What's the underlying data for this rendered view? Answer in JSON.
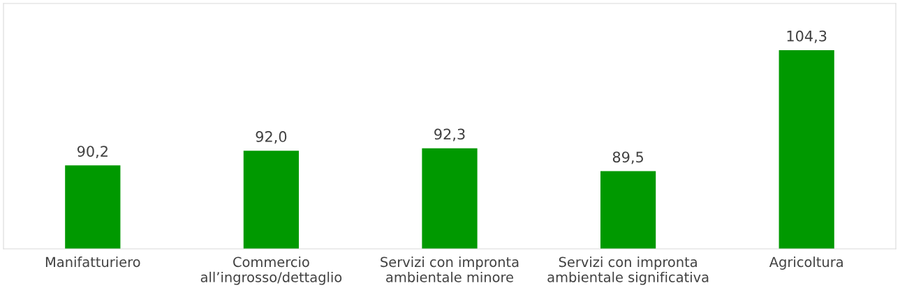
{
  "chart_data": {
    "type": "bar",
    "categories": [
      "Manifatturiero",
      "Commercio\nall’ingrosso/dettaglio",
      "Servizi con impronta\nambientale minore",
      "Servizi con impronta\nambientale significativa",
      "Agricoltura"
    ],
    "values": [
      90.2,
      92.0,
      92.3,
      89.5,
      104.3
    ],
    "value_labels": [
      "90,2",
      "92,0",
      "92,3",
      "89,5",
      "104,3"
    ],
    "color": "#009900",
    "ylim": [
      80,
      110
    ],
    "tick_labels": "x",
    "grid": false
  }
}
